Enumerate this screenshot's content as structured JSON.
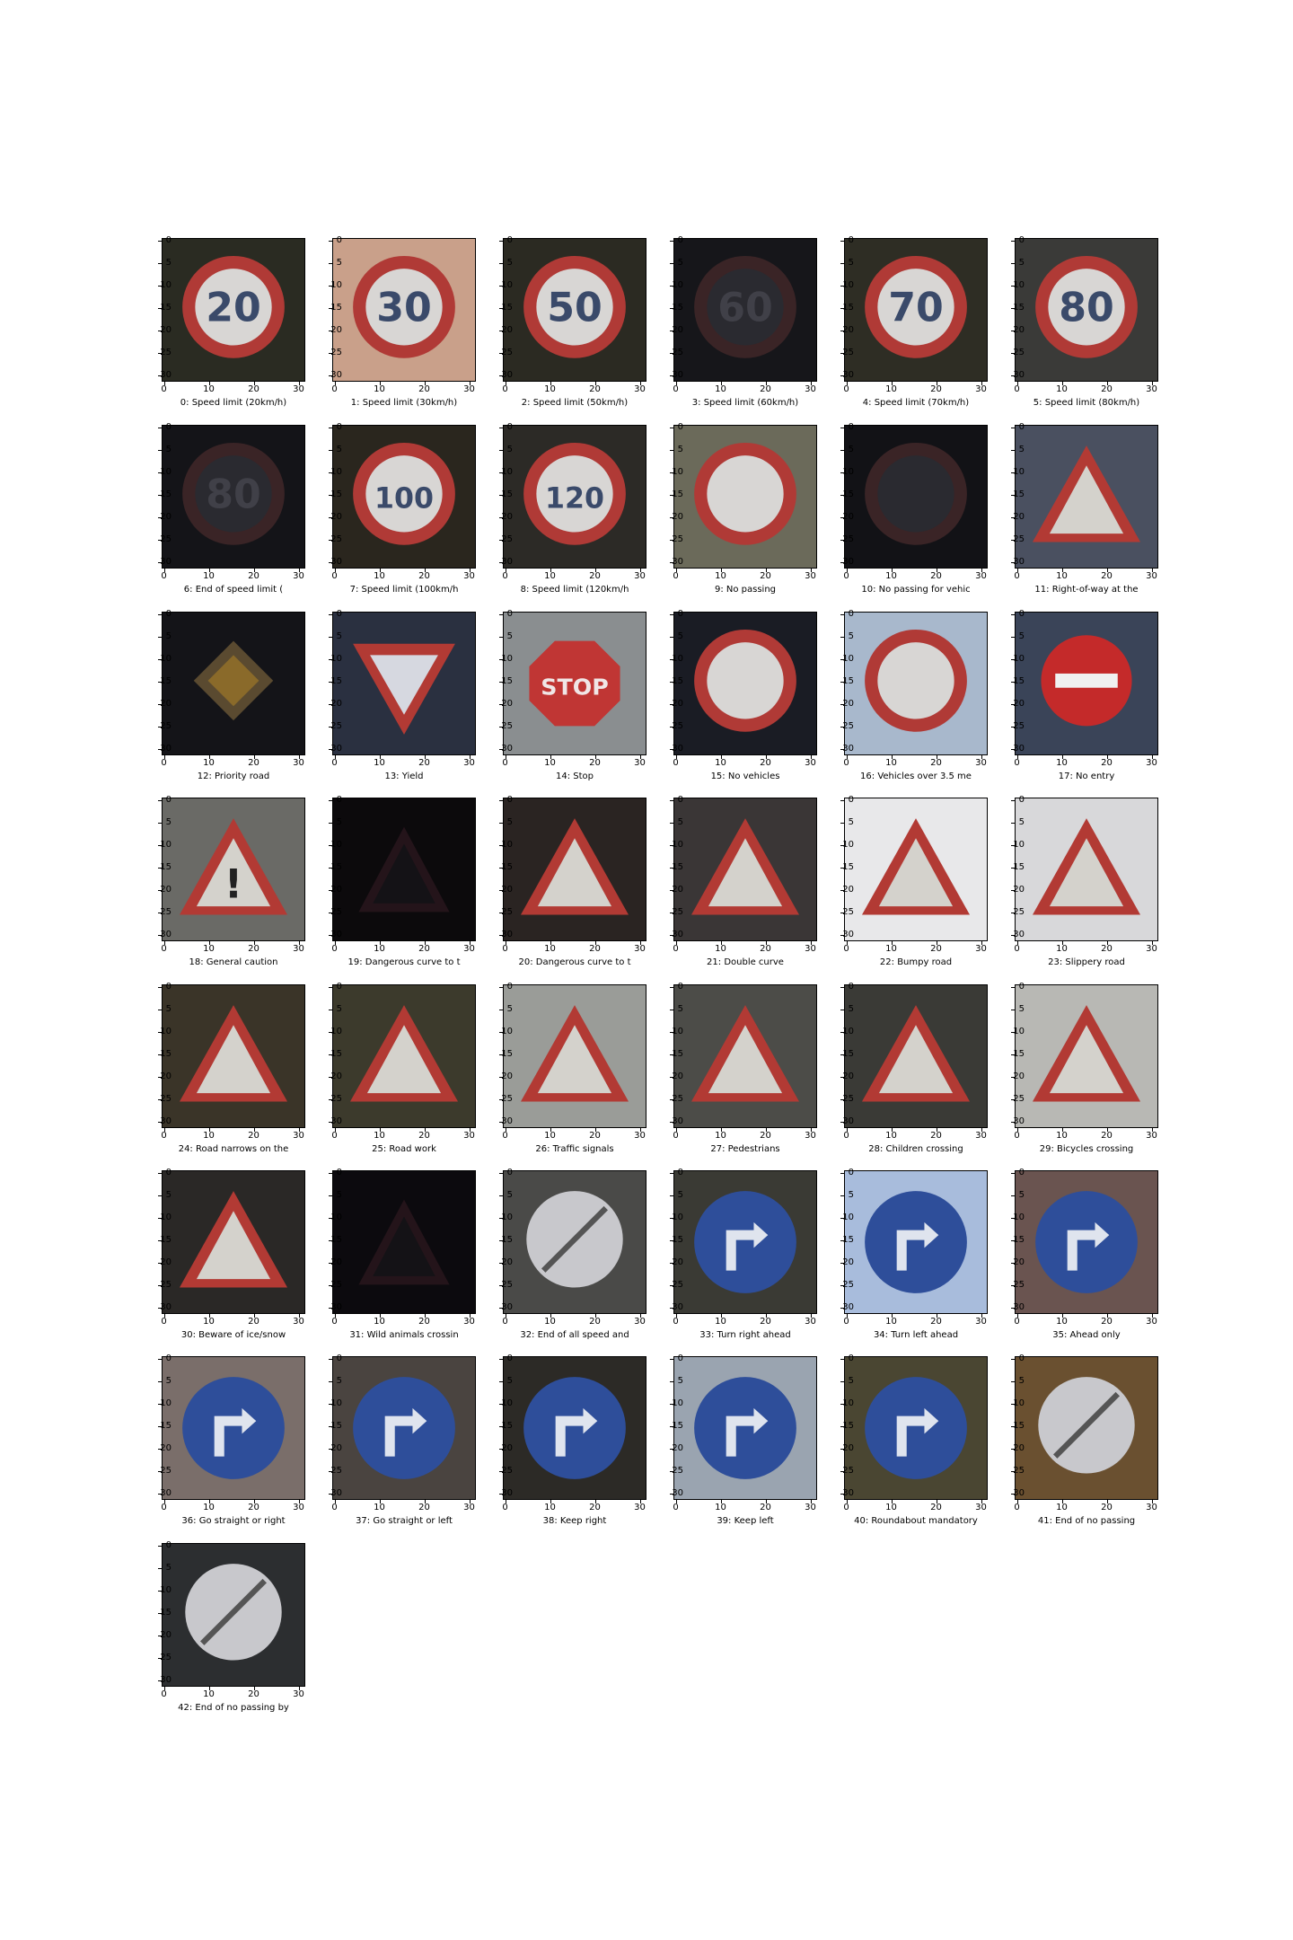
{
  "figure": {
    "y_tick_labels": [
      "0",
      "5",
      "10",
      "15",
      "20",
      "25",
      "30"
    ],
    "x_tick_labels": [
      "0",
      "10",
      "20",
      "30"
    ],
    "panels": [
      {
        "caption": "0: Speed limit (20km/h)",
        "sign": "speed-20-icon",
        "shape": "circle-red",
        "text": "20",
        "bg": "#2a2b22"
      },
      {
        "caption": "1: Speed limit (30km/h)",
        "sign": "speed-30-icon",
        "shape": "circle-red",
        "text": "30",
        "bg": "#c9a08a"
      },
      {
        "caption": "2: Speed limit (50km/h)",
        "sign": "speed-50-icon",
        "shape": "circle-red",
        "text": "50",
        "bg": "#2b2a22"
      },
      {
        "caption": "3: Speed limit (60km/h)",
        "sign": "speed-60-icon",
        "shape": "circle-dark",
        "text": "60",
        "bg": "#16161a"
      },
      {
        "caption": "4: Speed limit (70km/h)",
        "sign": "speed-70-icon",
        "shape": "circle-red",
        "text": "70",
        "bg": "#2e2d24"
      },
      {
        "caption": "5: Speed limit (80km/h)",
        "sign": "speed-80-icon",
        "shape": "circle-red",
        "text": "80",
        "bg": "#3a3a38"
      },
      {
        "caption": "6: End of speed limit (",
        "sign": "end-speed-limit-icon",
        "shape": "circle-dark",
        "text": "80",
        "bg": "#141418"
      },
      {
        "caption": "7: Speed limit (100km/h",
        "sign": "speed-100-icon",
        "shape": "circle-red",
        "text": "100",
        "bg": "#2a261e"
      },
      {
        "caption": "8: Speed limit (120km/h",
        "sign": "speed-120-icon",
        "shape": "circle-red",
        "text": "120",
        "bg": "#2c2a26"
      },
      {
        "caption": "9: No passing",
        "sign": "no-passing-icon",
        "shape": "circle-red",
        "text": "",
        "bg": "#6b6a5a"
      },
      {
        "caption": "10: No passing for vehic",
        "sign": "no-passing-trucks-icon",
        "shape": "circle-dark",
        "text": "",
        "bg": "#121216"
      },
      {
        "caption": "11: Right-of-way at the",
        "sign": "right-of-way-icon",
        "shape": "triangle",
        "text": "",
        "bg": "#4a5060"
      },
      {
        "caption": "12: Priority road",
        "sign": "priority-road-icon",
        "shape": "diamond",
        "text": "",
        "bg": "#141418"
      },
      {
        "caption": "13: Yield",
        "sign": "yield-icon",
        "shape": "triangle-down",
        "text": "",
        "bg": "#2a3040"
      },
      {
        "caption": "14: Stop",
        "sign": "stop-icon",
        "shape": "octagon",
        "text": "STOP",
        "bg": "#8a8e90"
      },
      {
        "caption": "15: No vehicles",
        "sign": "no-vehicles-icon",
        "shape": "circle-red",
        "text": "",
        "bg": "#1a1c24"
      },
      {
        "caption": "16: Vehicles over 3.5 me",
        "sign": "no-heavy-vehicles-icon",
        "shape": "circle-red",
        "text": "",
        "bg": "#a8b8cc"
      },
      {
        "caption": "17: No entry",
        "sign": "no-entry-icon",
        "shape": "circle-noentry",
        "text": "",
        "bg": "#3a4458"
      },
      {
        "caption": "18: General caution",
        "sign": "general-caution-icon",
        "shape": "triangle",
        "text": "!",
        "bg": "#6a6a66"
      },
      {
        "caption": "19: Dangerous curve to t",
        "sign": "curve-left-icon",
        "shape": "triangle-dark",
        "text": "",
        "bg": "#0c0a0c"
      },
      {
        "caption": "20: Dangerous curve to t",
        "sign": "curve-right-icon",
        "shape": "triangle",
        "text": "",
        "bg": "#2a2422"
      },
      {
        "caption": "21: Double curve",
        "sign": "double-curve-icon",
        "shape": "triangle",
        "text": "",
        "bg": "#3a3636"
      },
      {
        "caption": "22: Bumpy road",
        "sign": "bumpy-road-icon",
        "shape": "triangle",
        "text": "",
        "bg": "#e8e8ea"
      },
      {
        "caption": "23: Slippery road",
        "sign": "slippery-road-icon",
        "shape": "triangle",
        "text": "",
        "bg": "#d8d8da"
      },
      {
        "caption": "24: Road narrows on the",
        "sign": "road-narrows-icon",
        "shape": "triangle",
        "text": "",
        "bg": "#3a3428"
      },
      {
        "caption": "25: Road work",
        "sign": "road-work-icon",
        "shape": "triangle",
        "text": "",
        "bg": "#3c3a2c"
      },
      {
        "caption": "26: Traffic signals",
        "sign": "traffic-signals-icon",
        "shape": "triangle",
        "text": "",
        "bg": "#9a9c98"
      },
      {
        "caption": "27: Pedestrians",
        "sign": "pedestrians-icon",
        "shape": "triangle",
        "text": "",
        "bg": "#4c4c48"
      },
      {
        "caption": "28: Children crossing",
        "sign": "children-crossing-icon",
        "shape": "triangle",
        "text": "",
        "bg": "#3a3a36"
      },
      {
        "caption": "29: Bicycles crossing",
        "sign": "bicycles-crossing-icon",
        "shape": "triangle",
        "text": "",
        "bg": "#b8b8b4"
      },
      {
        "caption": "30: Beware of ice/snow",
        "sign": "ice-snow-icon",
        "shape": "triangle",
        "text": "",
        "bg": "#2a2826"
      },
      {
        "caption": "31: Wild animals crossin",
        "sign": "wild-animals-icon",
        "shape": "triangle-dark",
        "text": "",
        "bg": "#0c0a0e"
      },
      {
        "caption": "32: End of all speed and",
        "sign": "end-all-limits-icon",
        "shape": "circle-white",
        "text": "",
        "bg": "#4a4a48"
      },
      {
        "caption": "33: Turn right ahead",
        "sign": "turn-right-icon",
        "shape": "circle-blue",
        "text": "",
        "bg": "#3a3a34"
      },
      {
        "caption": "34: Turn left ahead",
        "sign": "turn-left-icon",
        "shape": "circle-blue",
        "text": "",
        "bg": "#a8bcdc"
      },
      {
        "caption": "35: Ahead only",
        "sign": "ahead-only-icon",
        "shape": "circle-blue",
        "text": "",
        "bg": "#6a5450"
      },
      {
        "caption": "36: Go straight or right",
        "sign": "straight-or-right-icon",
        "shape": "circle-blue",
        "text": "",
        "bg": "#7a6e6a"
      },
      {
        "caption": "37: Go straight or left",
        "sign": "straight-or-left-icon",
        "shape": "circle-blue",
        "text": "",
        "bg": "#4a4440"
      },
      {
        "caption": "38: Keep right",
        "sign": "keep-right-icon",
        "shape": "circle-blue",
        "text": "",
        "bg": "#2c2a26"
      },
      {
        "caption": "39: Keep left",
        "sign": "keep-left-icon",
        "shape": "circle-blue",
        "text": "",
        "bg": "#9aa4b0"
      },
      {
        "caption": "40: Roundabout mandatory",
        "sign": "roundabout-icon",
        "shape": "circle-blue",
        "text": "",
        "bg": "#4a4632"
      },
      {
        "caption": "41: End of no passing",
        "sign": "end-no-passing-icon",
        "shape": "circle-white",
        "text": "",
        "bg": "#6a5030"
      },
      {
        "caption": "42: End of no passing by",
        "sign": "end-no-passing-trucks-icon",
        "shape": "circle-white",
        "text": "",
        "bg": "#2c2e30"
      }
    ]
  }
}
